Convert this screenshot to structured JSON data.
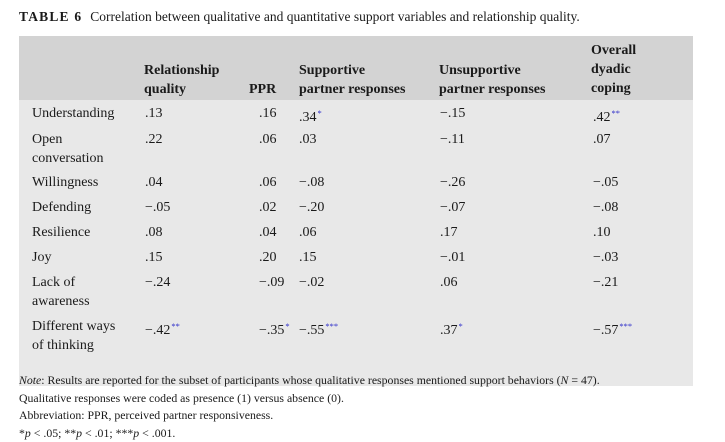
{
  "caption": {
    "label": "TABLE 6",
    "text": "Correlation between qualitative and quantitative support variables and relationship quality."
  },
  "columns": [
    {
      "line1": "",
      "line2": "Relationship",
      "line3": "quality"
    },
    {
      "line1": "",
      "line2": "",
      "line3": "PPR"
    },
    {
      "line1": "",
      "line2": "Supportive",
      "line3": "partner responses"
    },
    {
      "line1": "",
      "line2": "Unsupportive",
      "line3": "partner responses"
    },
    {
      "line1": "Overall",
      "line2": "dyadic",
      "line3": "coping"
    }
  ],
  "rows": [
    {
      "label1": "Understanding",
      "label2": "",
      "cells": [
        {
          "v": ".13",
          "s": ""
        },
        {
          "v": ".16",
          "s": ""
        },
        {
          "v": ".34",
          "s": "*"
        },
        {
          "v": "−.15",
          "s": ""
        },
        {
          "v": ".42",
          "s": "**"
        }
      ]
    },
    {
      "label1": "Open",
      "label2": "conversation",
      "cells": [
        {
          "v": ".22",
          "s": ""
        },
        {
          "v": ".06",
          "s": ""
        },
        {
          "v": ".03",
          "s": ""
        },
        {
          "v": "−.11",
          "s": ""
        },
        {
          "v": ".07",
          "s": ""
        }
      ]
    },
    {
      "label1": "Willingness",
      "label2": "",
      "cells": [
        {
          "v": ".04",
          "s": ""
        },
        {
          "v": ".06",
          "s": ""
        },
        {
          "v": "−.08",
          "s": ""
        },
        {
          "v": "−.26",
          "s": ""
        },
        {
          "v": "−.05",
          "s": ""
        }
      ]
    },
    {
      "label1": "Defending",
      "label2": "",
      "cells": [
        {
          "v": "−.05",
          "s": ""
        },
        {
          "v": ".02",
          "s": ""
        },
        {
          "v": "−.20",
          "s": ""
        },
        {
          "v": "−.07",
          "s": ""
        },
        {
          "v": "−.08",
          "s": ""
        }
      ]
    },
    {
      "label1": "Resilience",
      "label2": "",
      "cells": [
        {
          "v": ".08",
          "s": ""
        },
        {
          "v": ".04",
          "s": ""
        },
        {
          "v": ".06",
          "s": ""
        },
        {
          "v": ".17",
          "s": ""
        },
        {
          "v": ".10",
          "s": ""
        }
      ]
    },
    {
      "label1": "Joy",
      "label2": "",
      "cells": [
        {
          "v": ".15",
          "s": ""
        },
        {
          "v": ".20",
          "s": ""
        },
        {
          "v": ".15",
          "s": ""
        },
        {
          "v": "−.01",
          "s": ""
        },
        {
          "v": "−.03",
          "s": ""
        }
      ]
    },
    {
      "label1": "Lack of",
      "label2": "awareness",
      "cells": [
        {
          "v": "−.24",
          "s": ""
        },
        {
          "v": "−.09",
          "s": ""
        },
        {
          "v": "−.02",
          "s": ""
        },
        {
          "v": ".06",
          "s": ""
        },
        {
          "v": "−.21",
          "s": ""
        }
      ]
    },
    {
      "label1": "Different ways",
      "label2": "of thinking",
      "cells": [
        {
          "v": "−.42",
          "s": "**"
        },
        {
          "v": "−.35",
          "s": "*"
        },
        {
          "v": "−.55",
          "s": "***"
        },
        {
          "v": ".37",
          "s": "*"
        },
        {
          "v": "−.57",
          "s": "***"
        }
      ]
    }
  ],
  "notes": {
    "note_label": "Note",
    "note_text": ": Results are reported for the subset of participants whose qualitative responses mentioned support behaviors (",
    "n_symbol": "N",
    "n_value": " = 47).",
    "coding": "Qualitative responses were coded as presence (1) versus absence (0).",
    "abbreviation": "Abbreviation: PPR, perceived partner responsiveness.",
    "sig": "*p < .05; **p < .01; ***p < .001."
  },
  "colors": {
    "header_bg": "#d3d3d3",
    "body_bg": "#e8e8e8",
    "star": "#2b2bc9"
  }
}
